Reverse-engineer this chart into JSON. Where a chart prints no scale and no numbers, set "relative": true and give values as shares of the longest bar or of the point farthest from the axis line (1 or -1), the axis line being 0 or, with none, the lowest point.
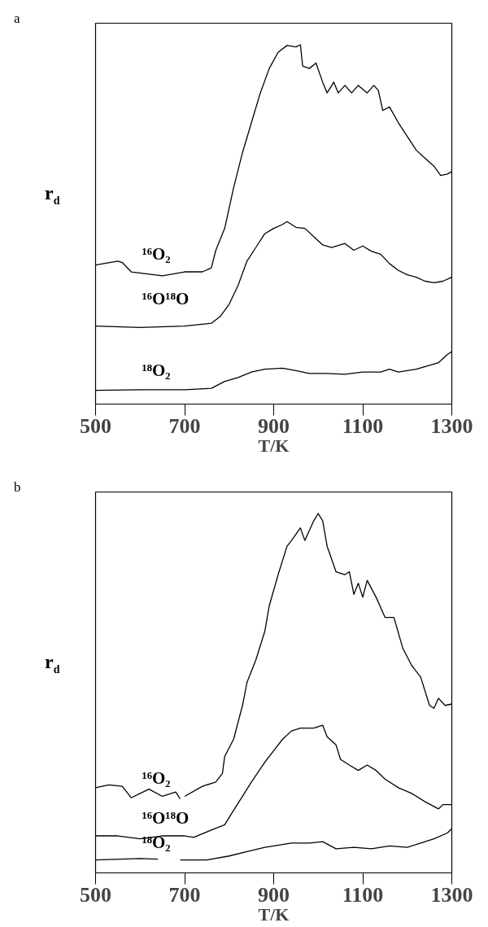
{
  "chart_data": [
    {
      "type": "line",
      "title": "a",
      "xlabel": "T/K",
      "ylabel": "r$_{d}$",
      "relative": true,
      "xlim": [
        500,
        1300
      ],
      "xticks": [
        500,
        700,
        900,
        1100,
        1300
      ],
      "grid": false,
      "line_style": "solid",
      "series": [
        {
          "name": "¹⁶O₂",
          "color": "#000000",
          "x": [
            500,
            550,
            560,
            580,
            650,
            700,
            740,
            760,
            770,
            790,
            810,
            830,
            850,
            870,
            890,
            910,
            930,
            950,
            960,
            965,
            980,
            995,
            1010,
            1020,
            1035,
            1045,
            1060,
            1075,
            1090,
            1110,
            1125,
            1135,
            1145,
            1160,
            1180,
            1200,
            1220,
            1240,
            1260,
            1275,
            1290,
            1300
          ],
          "values": [
            0.387,
            0.398,
            0.394,
            0.368,
            0.357,
            0.368,
            0.368,
            0.379,
            0.428,
            0.489,
            0.602,
            0.7,
            0.783,
            0.866,
            0.934,
            0.979,
            0.998,
            0.994,
            1.0,
            0.941,
            0.934,
            0.949,
            0.896,
            0.866,
            0.896,
            0.866,
            0.887,
            0.866,
            0.887,
            0.866,
            0.887,
            0.873,
            0.817,
            0.827,
            0.783,
            0.745,
            0.707,
            0.684,
            0.662,
            0.636,
            0.64,
            0.647
          ]
        },
        {
          "name": "¹⁶O¹⁸O",
          "color": "#000000",
          "x": [
            500,
            600,
            700,
            760,
            780,
            800,
            820,
            840,
            860,
            880,
            900,
            920,
            930,
            950,
            970,
            990,
            1010,
            1030,
            1060,
            1080,
            1100,
            1120,
            1140,
            1160,
            1180,
            1200,
            1220,
            1240,
            1260,
            1280,
            1300
          ],
          "values": [
            0.217,
            0.213,
            0.217,
            0.225,
            0.244,
            0.278,
            0.33,
            0.398,
            0.436,
            0.474,
            0.489,
            0.5,
            0.508,
            0.492,
            0.489,
            0.466,
            0.443,
            0.436,
            0.447,
            0.428,
            0.44,
            0.425,
            0.417,
            0.391,
            0.372,
            0.36,
            0.353,
            0.342,
            0.338,
            0.342,
            0.353
          ]
        },
        {
          "name": "¹⁸O₂",
          "color": "#000000",
          "x": [
            500,
            600,
            700,
            760,
            790,
            820,
            850,
            880,
            920,
            950,
            980,
            1020,
            1060,
            1100,
            1140,
            1160,
            1180,
            1220,
            1250,
            1270,
            1290,
            1300
          ],
          "values": [
            0.038,
            0.04,
            0.04,
            0.044,
            0.063,
            0.074,
            0.089,
            0.097,
            0.1,
            0.093,
            0.085,
            0.085,
            0.083,
            0.089,
            0.089,
            0.097,
            0.089,
            0.097,
            0.108,
            0.115,
            0.138,
            0.146
          ]
        }
      ]
    },
    {
      "type": "line",
      "title": "b",
      "xlabel": "T/K",
      "ylabel": "r$_{d}$",
      "relative": true,
      "xlim": [
        500,
        1300
      ],
      "xticks": [
        500,
        700,
        900,
        1100,
        1300
      ],
      "grid": false,
      "line_style": "solid",
      "series": [
        {
          "name": "¹⁶O₂",
          "color": "#000000",
          "x": [
            500,
            530,
            560,
            580,
            600,
            620,
            650,
            680,
            690,
            695,
            700,
            740,
            770,
            785,
            790,
            810,
            830,
            840,
            860,
            880,
            890,
            910,
            930,
            940,
            960,
            970,
            990,
            1000,
            1010,
            1020,
            1040,
            1060,
            1070,
            1080,
            1090,
            1100,
            1110,
            1130,
            1150,
            1170,
            1190,
            1210,
            1230,
            1250,
            1260,
            1270,
            1285,
            1300
          ],
          "values": [
            0.237,
            0.245,
            0.241,
            0.209,
            0.221,
            0.233,
            0.213,
            0.225,
            0.206,
            null,
            0.213,
            0.241,
            0.253,
            0.277,
            0.324,
            0.372,
            0.466,
            0.53,
            0.593,
            0.672,
            0.743,
            0.83,
            0.909,
            0.925,
            0.96,
            0.925,
            0.98,
            1.0,
            0.98,
            0.909,
            0.838,
            0.83,
            0.838,
            0.775,
            0.806,
            0.767,
            0.814,
            0.767,
            0.711,
            0.711,
            0.625,
            0.577,
            0.545,
            0.466,
            0.458,
            0.486,
            0.466,
            0.47
          ]
        },
        {
          "name": "¹⁶O¹⁸O",
          "color": "#000000",
          "x": [
            500,
            550,
            600,
            650,
            700,
            720,
            760,
            790,
            810,
            830,
            850,
            880,
            900,
            920,
            940,
            960,
            990,
            1010,
            1020,
            1040,
            1050,
            1070,
            1090,
            1110,
            1130,
            1150,
            1180,
            1210,
            1240,
            1270,
            1280,
            1300
          ],
          "values": [
            0.103,
            0.103,
            0.095,
            0.103,
            0.103,
            0.099,
            0.119,
            0.134,
            0.174,
            0.213,
            0.253,
            0.308,
            0.34,
            0.372,
            0.395,
            0.403,
            0.403,
            0.411,
            0.379,
            0.356,
            0.316,
            0.3,
            0.285,
            0.3,
            0.285,
            0.261,
            0.237,
            0.221,
            0.198,
            0.178,
            0.19,
            0.19
          ]
        },
        {
          "name": "¹⁸O₂",
          "color": "#000000",
          "x": [
            500,
            600,
            640,
            660,
            690,
            700,
            750,
            800,
            840,
            880,
            920,
            940,
            980,
            1010,
            1040,
            1080,
            1120,
            1160,
            1200,
            1230,
            1260,
            1290,
            1300
          ],
          "values": [
            0.036,
            0.04,
            0.038,
            null,
            0.036,
            0.036,
            0.036,
            0.047,
            0.059,
            0.071,
            0.079,
            0.083,
            0.083,
            0.087,
            0.067,
            0.071,
            0.067,
            0.075,
            0.071,
            0.083,
            0.095,
            0.111,
            0.123
          ]
        }
      ]
    }
  ]
}
